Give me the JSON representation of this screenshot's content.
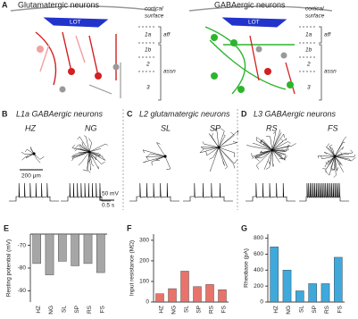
{
  "figure": {
    "panel_a": {
      "letter": "A",
      "left_title": "Glutamatergic neurons",
      "right_title": "GABAergic neurons",
      "lot_left": "LOT",
      "lot_right": "LOT",
      "surface_left": [
        "cortical",
        "surface"
      ],
      "surface_right": [
        "cortical",
        "surface"
      ],
      "layers_left": [
        "1a",
        "1b",
        "2",
        "3"
      ],
      "layers_right": [
        "1a",
        "1b",
        "2",
        "3"
      ],
      "aff_left": "aff",
      "assn_left": "assn",
      "aff_right": "aff",
      "assn_right": "assn"
    },
    "panel_b": {
      "letter": "B",
      "title": "L1a GABAergic neurons",
      "cells": [
        "HZ",
        "NG"
      ],
      "scale_morph": "200 μm",
      "scale_v": "50 mV",
      "scale_t": "0.5 s"
    },
    "panel_c": {
      "letter": "C",
      "title": "L2 glutamatergic neurons",
      "cells": [
        "SL",
        "SP"
      ]
    },
    "panel_d": {
      "letter": "D",
      "title": "L3 GABAergic neurons",
      "cells": [
        "RS",
        "FS"
      ]
    }
  },
  "chart_data": [
    {
      "type": "bar",
      "panel": "E",
      "ylabel": "Resting potential (mV)",
      "categories": [
        "HZ",
        "NG",
        "SL",
        "SP",
        "RS",
        "FS"
      ],
      "values": [
        -78,
        -83,
        -77,
        -79,
        -78,
        -82
      ],
      "color": "#a6a6a6",
      "ylim": [
        -95,
        -65
      ],
      "yticks": [
        -70,
        -80,
        -90
      ]
    },
    {
      "type": "bar",
      "panel": "F",
      "ylabel": "Input resistance (MΩ)",
      "categories": [
        "HZ",
        "NG",
        "SL",
        "SP",
        "RS",
        "FS"
      ],
      "values": [
        40,
        65,
        150,
        75,
        85,
        60
      ],
      "color": "#e8736b",
      "ylim": [
        0,
        330
      ],
      "yticks": [
        0,
        100,
        200,
        300
      ]
    },
    {
      "type": "bar",
      "panel": "G",
      "ylabel": "Rheobase (pA)",
      "categories": [
        "HZ",
        "NG",
        "SL",
        "SP",
        "RS",
        "FS"
      ],
      "values": [
        690,
        400,
        140,
        230,
        230,
        560
      ],
      "color": "#3fa9dc",
      "ylim": [
        0,
        850
      ],
      "yticks": [
        0,
        200,
        400,
        600,
        800
      ]
    }
  ]
}
